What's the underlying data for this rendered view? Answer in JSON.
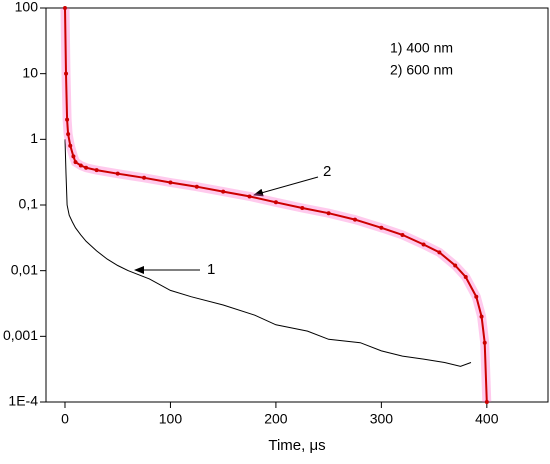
{
  "chart_data": {
    "type": "line",
    "xlabel": "Time, μs",
    "xlim": [
      -18,
      458
    ],
    "xticks": [
      0,
      100,
      200,
      300,
      400
    ],
    "ylim": [
      0.0001,
      100
    ],
    "log_y": true,
    "yticks": [
      {
        "value": 0.0001,
        "label": "1E-4"
      },
      {
        "value": 0.001,
        "label": "0,001"
      },
      {
        "value": 0.01,
        "label": "0,01"
      },
      {
        "value": 0.1,
        "label": "0,1"
      },
      1,
      10,
      100
    ],
    "legend": "upper right",
    "series": [
      {
        "name": "1) 400 nm",
        "color": "#000000",
        "x": [
          0,
          1,
          2,
          4,
          7,
          10,
          15,
          20,
          30,
          40,
          50,
          60,
          80,
          100,
          120,
          150,
          180,
          200,
          230,
          250,
          280,
          300,
          320,
          340,
          360,
          375,
          385
        ],
        "values": [
          1,
          0.3,
          0.1,
          0.07,
          0.055,
          0.045,
          0.035,
          0.028,
          0.02,
          0.015,
          0.012,
          0.01,
          0.0075,
          0.005,
          0.004,
          0.003,
          0.0021,
          0.0015,
          0.0012,
          0.0009,
          0.0008,
          0.0006,
          0.0005,
          0.00045,
          0.0004,
          0.00035,
          0.0004
        ]
      },
      {
        "name": "2) 600 nm",
        "color": "#cc0000",
        "x": [
          0,
          1,
          2,
          3,
          5,
          8,
          10,
          15,
          20,
          30,
          50,
          75,
          100,
          125,
          150,
          175,
          200,
          225,
          250,
          275,
          300,
          320,
          340,
          355,
          370,
          380,
          390,
          395,
          398,
          400
        ],
        "values": [
          100,
          10,
          2,
          1.2,
          0.8,
          0.55,
          0.45,
          0.4,
          0.37,
          0.34,
          0.3,
          0.26,
          0.22,
          0.19,
          0.16,
          0.135,
          0.11,
          0.09,
          0.075,
          0.06,
          0.045,
          0.035,
          0.025,
          0.019,
          0.012,
          0.008,
          0.004,
          0.002,
          0.0008,
          0.0001
        ]
      }
    ],
    "annotations": [
      "1",
      "2"
    ]
  }
}
